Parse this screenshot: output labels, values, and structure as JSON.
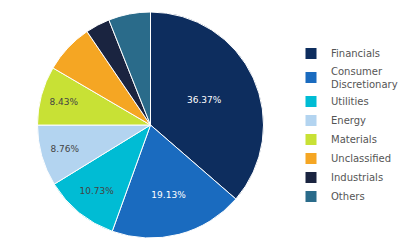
{
  "chart_data": {
    "type": "pie",
    "categories": [
      "Financials",
      "Consumer\nDiscretionary",
      "Utilities",
      "Energy",
      "Materials",
      "Unclassified",
      "Industrials",
      "Others"
    ],
    "values": [
      36.37,
      19.13,
      10.73,
      8.76,
      8.43,
      7.08,
      3.5,
      6.0
    ],
    "value_labels": [
      "36.37%",
      "19.13%",
      "10.73%",
      "8.76%",
      "8.43%",
      null,
      null,
      null
    ],
    "colors": [
      "#0d2d5e",
      "#1a6bbf",
      "#00bcd4",
      "#b3d4f0",
      "#c8e135",
      "#f5a623",
      "#1a2440",
      "#2a6b8a"
    ],
    "data_labels": true,
    "legend": "right"
  }
}
